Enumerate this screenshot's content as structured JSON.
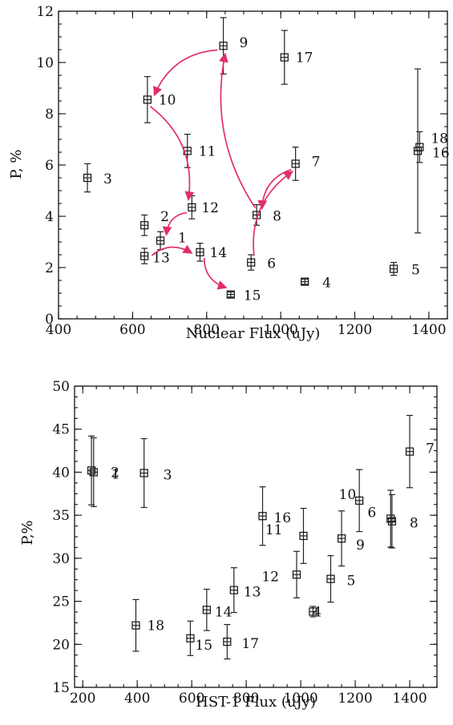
{
  "chart_data": [
    {
      "type": "scatter",
      "xlabel": "Nuclear Flux (uJy)",
      "ylabel": "P, %",
      "xlim": [
        400,
        1450
      ],
      "ylim": [
        0,
        12
      ],
      "xticks": [
        400,
        600,
        800,
        1000,
        1200,
        1400
      ],
      "yticks": [
        0,
        2,
        4,
        6,
        8,
        10,
        12
      ],
      "error_bars": true,
      "points": [
        {
          "label": "1",
          "x": 675,
          "y": 3.05,
          "err": 0.35
        },
        {
          "label": "2",
          "x": 632,
          "y": 3.65,
          "err": 0.4
        },
        {
          "label": "3",
          "x": 478,
          "y": 5.5,
          "err": 0.55
        },
        {
          "label": "4",
          "x": 1065,
          "y": 1.45,
          "err": 0.1
        },
        {
          "label": "5",
          "x": 1305,
          "y": 1.95,
          "err": 0.25
        },
        {
          "label": "6",
          "x": 920,
          "y": 2.2,
          "err": 0.3
        },
        {
          "label": "7",
          "x": 1040,
          "y": 6.05,
          "err": 0.65
        },
        {
          "label": "8",
          "x": 935,
          "y": 4.05,
          "err": 0.4
        },
        {
          "label": "9",
          "x": 845,
          "y": 10.65,
          "err": 1.1
        },
        {
          "label": "10",
          "x": 640,
          "y": 8.55,
          "err": 0.9
        },
        {
          "label": "11",
          "x": 748,
          "y": 6.55,
          "err": 0.65
        },
        {
          "label": "12",
          "x": 760,
          "y": 4.35,
          "err": 0.45
        },
        {
          "label": "13",
          "x": 632,
          "y": 2.45,
          "err": 0.3
        },
        {
          "label": "14",
          "x": 782,
          "y": 2.6,
          "err": 0.35
        },
        {
          "label": "15",
          "x": 865,
          "y": 0.95,
          "err": 0.1
        },
        {
          "label": "16",
          "x": 1370,
          "y": 6.55,
          "err": 3.2
        },
        {
          "label": "17",
          "x": 1010,
          "y": 10.2,
          "err": 1.05
        },
        {
          "label": "18",
          "x": 1375,
          "y": 6.7,
          "err": 0.6
        }
      ],
      "arrows": [
        {
          "from": "9",
          "to": "10"
        },
        {
          "from": "10",
          "to": "12"
        },
        {
          "from": "12",
          "to": "1"
        },
        {
          "from": "13",
          "to": "14"
        },
        {
          "from": "14",
          "to": "15"
        },
        {
          "from": "6",
          "to": "7"
        },
        {
          "from": "7",
          "to": "8"
        },
        {
          "from": "8",
          "to": "9"
        }
      ],
      "arrow_color": "#e0306a"
    },
    {
      "type": "scatter",
      "xlabel": "HST-1 Flux (uJy)",
      "ylabel": "P,%",
      "xlim": [
        170,
        1500
      ],
      "ylim": [
        15,
        50
      ],
      "xticks": [
        200,
        400,
        600,
        800,
        1000,
        1200,
        1400
      ],
      "yticks": [
        15,
        20,
        25,
        30,
        35,
        40,
        45,
        50
      ],
      "error_bars": true,
      "points": [
        {
          "label": "1",
          "x": 240,
          "y": 40.0,
          "err": 4.0
        },
        {
          "label": "2",
          "x": 232,
          "y": 40.2,
          "err": 4.0
        },
        {
          "label": "3",
          "x": 425,
          "y": 39.9,
          "err": 4.0
        },
        {
          "label": "4",
          "x": 1045,
          "y": 23.8,
          "err": 0.6
        },
        {
          "label": "5",
          "x": 1110,
          "y": 27.6,
          "err": 2.7
        },
        {
          "label": "6",
          "x": 1330,
          "y": 34.6,
          "err": 3.3
        },
        {
          "label": "7",
          "x": 1400,
          "y": 42.4,
          "err": 4.2
        },
        {
          "label": "8",
          "x": 1335,
          "y": 34.3,
          "err": 3.1
        },
        {
          "label": "9",
          "x": 1150,
          "y": 32.3,
          "err": 3.2
        },
        {
          "label": "10",
          "x": 1215,
          "y": 36.7,
          "err": 3.6
        },
        {
          "label": "11",
          "x": 1010,
          "y": 32.6,
          "err": 3.2
        },
        {
          "label": "12",
          "x": 985,
          "y": 28.1,
          "err": 2.7
        },
        {
          "label": "13",
          "x": 755,
          "y": 26.3,
          "err": 2.6
        },
        {
          "label": "14",
          "x": 655,
          "y": 24.0,
          "err": 2.4
        },
        {
          "label": "15",
          "x": 595,
          "y": 20.7,
          "err": 2.0
        },
        {
          "label": "16",
          "x": 860,
          "y": 34.9,
          "err": 3.4
        },
        {
          "label": "17",
          "x": 730,
          "y": 20.3,
          "err": 2.0
        },
        {
          "label": "18",
          "x": 395,
          "y": 22.2,
          "err": 3.0
        }
      ]
    }
  ]
}
